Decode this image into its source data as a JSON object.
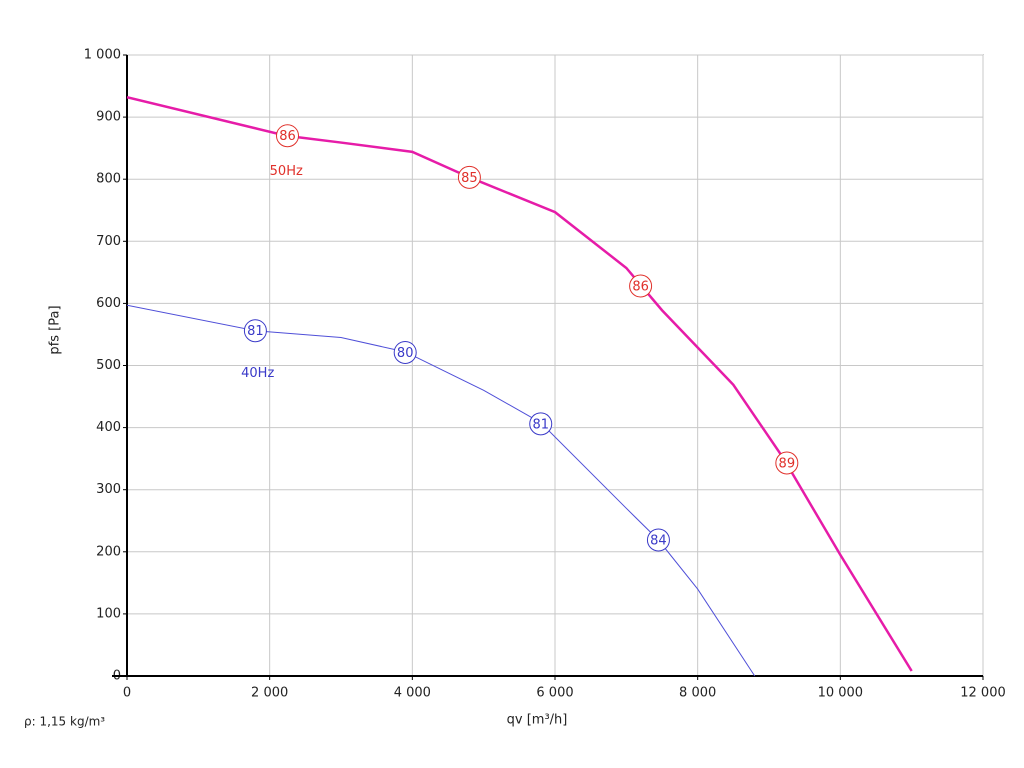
{
  "chart_data": {
    "type": "line",
    "xlabel": "qv [m³/h]",
    "ylabel": "pfs [Pa]",
    "note": "ρ: 1,15 kg/m³",
    "xlim": [
      0,
      12000
    ],
    "ylim": [
      0,
      1000
    ],
    "xticks": [
      0,
      {
        "value": 2000,
        "label": "2 000"
      },
      {
        "value": 4000,
        "label": "4 000"
      },
      {
        "value": 6000,
        "label": "6 000"
      },
      {
        "value": 8000,
        "label": "8 000"
      },
      {
        "value": 10000,
        "label": "10 000"
      },
      {
        "value": 12000,
        "label": "12 000"
      }
    ],
    "yticks": [
      0,
      100,
      200,
      300,
      400,
      500,
      600,
      700,
      800,
      900,
      {
        "value": 1000,
        "label": "1 000"
      }
    ],
    "grid": true,
    "series": [
      {
        "name": "50Hz",
        "color": "#e61ca8",
        "label_color": "#e0302a",
        "x": [
          0,
          2230,
          3000,
          4000,
          4800,
          6000,
          7000,
          7500,
          8500,
          9200,
          10000,
          11000
        ],
        "values": [
          932,
          870,
          859,
          844,
          803,
          747,
          657,
          589,
          469,
          351,
          195,
          8
        ],
        "label_x": 2000,
        "label_y": 812,
        "annotations": [
          {
            "x": 2250,
            "y": 870,
            "text": "86"
          },
          {
            "x": 4800,
            "y": 803,
            "text": "85"
          },
          {
            "x": 7200,
            "y": 628,
            "text": "86"
          },
          {
            "x": 9250,
            "y": 343,
            "text": "89"
          }
        ]
      },
      {
        "name": "40Hz",
        "color": "#4f4fd8",
        "label_color": "#3a3ac8",
        "x": [
          0,
          1800,
          3000,
          3900,
          5000,
          5800,
          7000,
          7450,
          8000,
          8800
        ],
        "values": [
          597,
          556,
          545,
          522,
          460,
          408,
          270,
          219,
          140,
          0
        ],
        "label_x": 1600,
        "label_y": 487,
        "annotations": [
          {
            "x": 1800,
            "y": 556,
            "text": "81"
          },
          {
            "x": 3900,
            "y": 521,
            "text": "80"
          },
          {
            "x": 5800,
            "y": 406,
            "text": "81"
          },
          {
            "x": 7450,
            "y": 219,
            "text": "84"
          }
        ]
      }
    ]
  }
}
